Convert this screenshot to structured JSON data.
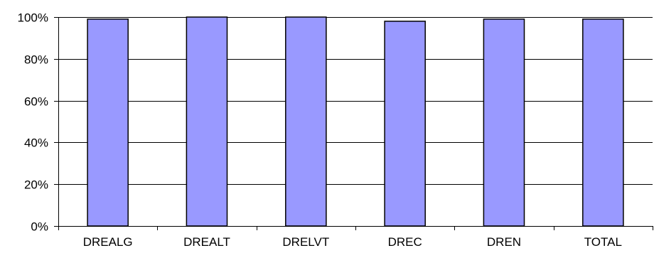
{
  "chart_data": {
    "type": "bar",
    "categories": [
      "DREALG",
      "DREALT",
      "DRELVT",
      "DREC",
      "DREN",
      "TOTAL"
    ],
    "values": [
      99,
      100,
      100,
      98,
      99,
      99
    ],
    "title": "",
    "xlabel": "",
    "ylabel": "",
    "ylim": [
      0,
      100
    ],
    "yticks": [
      0,
      20,
      40,
      60,
      80,
      100
    ],
    "ytick_labels": [
      "0%",
      "20%",
      "40%",
      "60%",
      "80%",
      "100%"
    ],
    "grid": "horizontal",
    "legend": "none",
    "colors": {
      "bar_fill": "#9999ff",
      "bar_stroke": "#000000",
      "grid": "#000000",
      "axis": "#000000",
      "text": "#000000"
    }
  }
}
